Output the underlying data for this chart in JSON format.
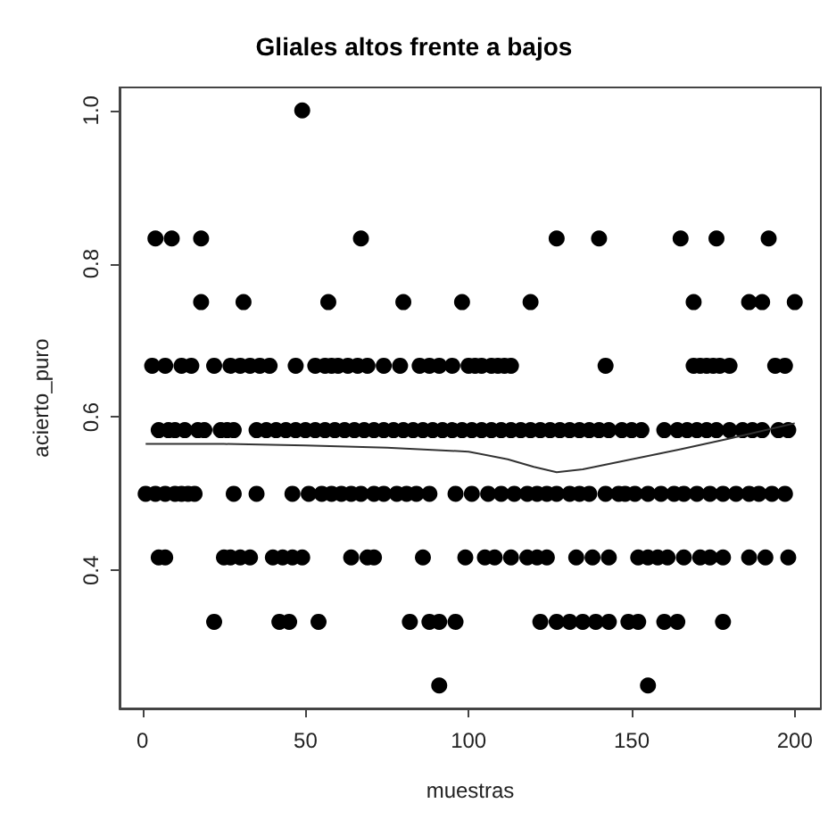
{
  "chart_data": {
    "type": "scatter",
    "title": "Gliales altos frente a bajos",
    "xlabel": "muestras",
    "ylabel": "acierto_puro",
    "grid": false,
    "xlim": [
      -7,
      208
    ],
    "xticks": [
      0,
      50,
      100,
      150,
      200
    ],
    "ylim": [
      0.22,
      1.03
    ],
    "yticks": [
      0.4,
      0.6,
      0.8,
      {
        "value": 1,
        "label": "1.0"
      }
    ],
    "series": [
      {
        "marker": "circle",
        "color": "#000000",
        "x": [
          49,
          4,
          9,
          18,
          67,
          127,
          140,
          165,
          176,
          192,
          18,
          31,
          57,
          80,
          98,
          119,
          169,
          186,
          190,
          200,
          3,
          7,
          12,
          15,
          22,
          27,
          30,
          33,
          36,
          39,
          47,
          53,
          56,
          58,
          60,
          63,
          66,
          69,
          74,
          79,
          85,
          88,
          91,
          95,
          100,
          102,
          104,
          107,
          109,
          111,
          113,
          142,
          169,
          171,
          173,
          175,
          177,
          180,
          194,
          197,
          5,
          8,
          10,
          13,
          17,
          19,
          24,
          26,
          28,
          35,
          38,
          41,
          44,
          47,
          50,
          53,
          56,
          59,
          62,
          65,
          68,
          71,
          74,
          77,
          80,
          83,
          86,
          89,
          92,
          95,
          98,
          101,
          104,
          107,
          110,
          113,
          116,
          119,
          122,
          125,
          128,
          131,
          134,
          137,
          140,
          143,
          147,
          150,
          153,
          160,
          164,
          167,
          170,
          173,
          176,
          180,
          184,
          187,
          190,
          195,
          198,
          1,
          4,
          7,
          10,
          12,
          14,
          16,
          28,
          35,
          46,
          51,
          55,
          58,
          61,
          64,
          67,
          71,
          74,
          78,
          81,
          84,
          88,
          96,
          101,
          106,
          110,
          114,
          118,
          121,
          124,
          127,
          131,
          134,
          137,
          142,
          146,
          148,
          151,
          155,
          159,
          163,
          166,
          170,
          174,
          178,
          182,
          186,
          189,
          193,
          197,
          5,
          7,
          25,
          27,
          30,
          33,
          40,
          43,
          46,
          49,
          64,
          69,
          71,
          86,
          99,
          105,
          108,
          113,
          118,
          121,
          124,
          133,
          138,
          143,
          152,
          155,
          158,
          161,
          166,
          171,
          174,
          178,
          186,
          191,
          198,
          22,
          42,
          45,
          54,
          82,
          88,
          91,
          96,
          122,
          127,
          131,
          135,
          139,
          143,
          149,
          152,
          160,
          164,
          178,
          91,
          155
        ],
        "values": [
          1,
          0.833,
          0.833,
          0.833,
          0.833,
          0.833,
          0.833,
          0.833,
          0.833,
          0.833,
          0.75,
          0.75,
          0.75,
          0.75,
          0.75,
          0.75,
          0.75,
          0.75,
          0.75,
          0.75,
          0.667,
          0.667,
          0.667,
          0.667,
          0.667,
          0.667,
          0.667,
          0.667,
          0.667,
          0.667,
          0.667,
          0.667,
          0.667,
          0.667,
          0.667,
          0.667,
          0.667,
          0.667,
          0.667,
          0.667,
          0.667,
          0.667,
          0.667,
          0.667,
          0.667,
          0.667,
          0.667,
          0.667,
          0.667,
          0.667,
          0.667,
          0.667,
          0.667,
          0.667,
          0.667,
          0.667,
          0.667,
          0.667,
          0.667,
          0.667,
          0.583,
          0.583,
          0.583,
          0.583,
          0.583,
          0.583,
          0.583,
          0.583,
          0.583,
          0.583,
          0.583,
          0.583,
          0.583,
          0.583,
          0.583,
          0.583,
          0.583,
          0.583,
          0.583,
          0.583,
          0.583,
          0.583,
          0.583,
          0.583,
          0.583,
          0.583,
          0.583,
          0.583,
          0.583,
          0.583,
          0.583,
          0.583,
          0.583,
          0.583,
          0.583,
          0.583,
          0.583,
          0.583,
          0.583,
          0.583,
          0.583,
          0.583,
          0.583,
          0.583,
          0.583,
          0.583,
          0.583,
          0.583,
          0.583,
          0.583,
          0.583,
          0.583,
          0.583,
          0.583,
          0.583,
          0.583,
          0.583,
          0.583,
          0.583,
          0.583,
          0.583,
          0.5,
          0.5,
          0.5,
          0.5,
          0.5,
          0.5,
          0.5,
          0.5,
          0.5,
          0.5,
          0.5,
          0.5,
          0.5,
          0.5,
          0.5,
          0.5,
          0.5,
          0.5,
          0.5,
          0.5,
          0.5,
          0.5,
          0.5,
          0.5,
          0.5,
          0.5,
          0.5,
          0.5,
          0.5,
          0.5,
          0.5,
          0.5,
          0.5,
          0.5,
          0.5,
          0.5,
          0.5,
          0.5,
          0.5,
          0.5,
          0.5,
          0.5,
          0.5,
          0.5,
          0.5,
          0.5,
          0.5,
          0.5,
          0.5,
          0.5,
          0.417,
          0.417,
          0.417,
          0.417,
          0.417,
          0.417,
          0.417,
          0.417,
          0.417,
          0.417,
          0.417,
          0.417,
          0.417,
          0.417,
          0.417,
          0.417,
          0.417,
          0.417,
          0.417,
          0.417,
          0.417,
          0.417,
          0.417,
          0.417,
          0.417,
          0.417,
          0.417,
          0.417,
          0.417,
          0.417,
          0.417,
          0.417,
          0.417,
          0.417,
          0.417,
          0.333,
          0.333,
          0.333,
          0.333,
          0.333,
          0.333,
          0.333,
          0.333,
          0.333,
          0.333,
          0.333,
          0.333,
          0.333,
          0.333,
          0.333,
          0.333,
          0.333,
          0.333,
          0.333,
          0.25,
          0.25
        ]
      },
      {
        "type": "line",
        "color": "#333333",
        "x": [
          1,
          25,
          50,
          75,
          100,
          112,
          120,
          127,
          135,
          150,
          165,
          180,
          200
        ],
        "values": [
          0.565,
          0.565,
          0.563,
          0.56,
          0.555,
          0.545,
          0.535,
          0.528,
          0.532,
          0.545,
          0.558,
          0.572,
          0.592
        ]
      }
    ]
  }
}
